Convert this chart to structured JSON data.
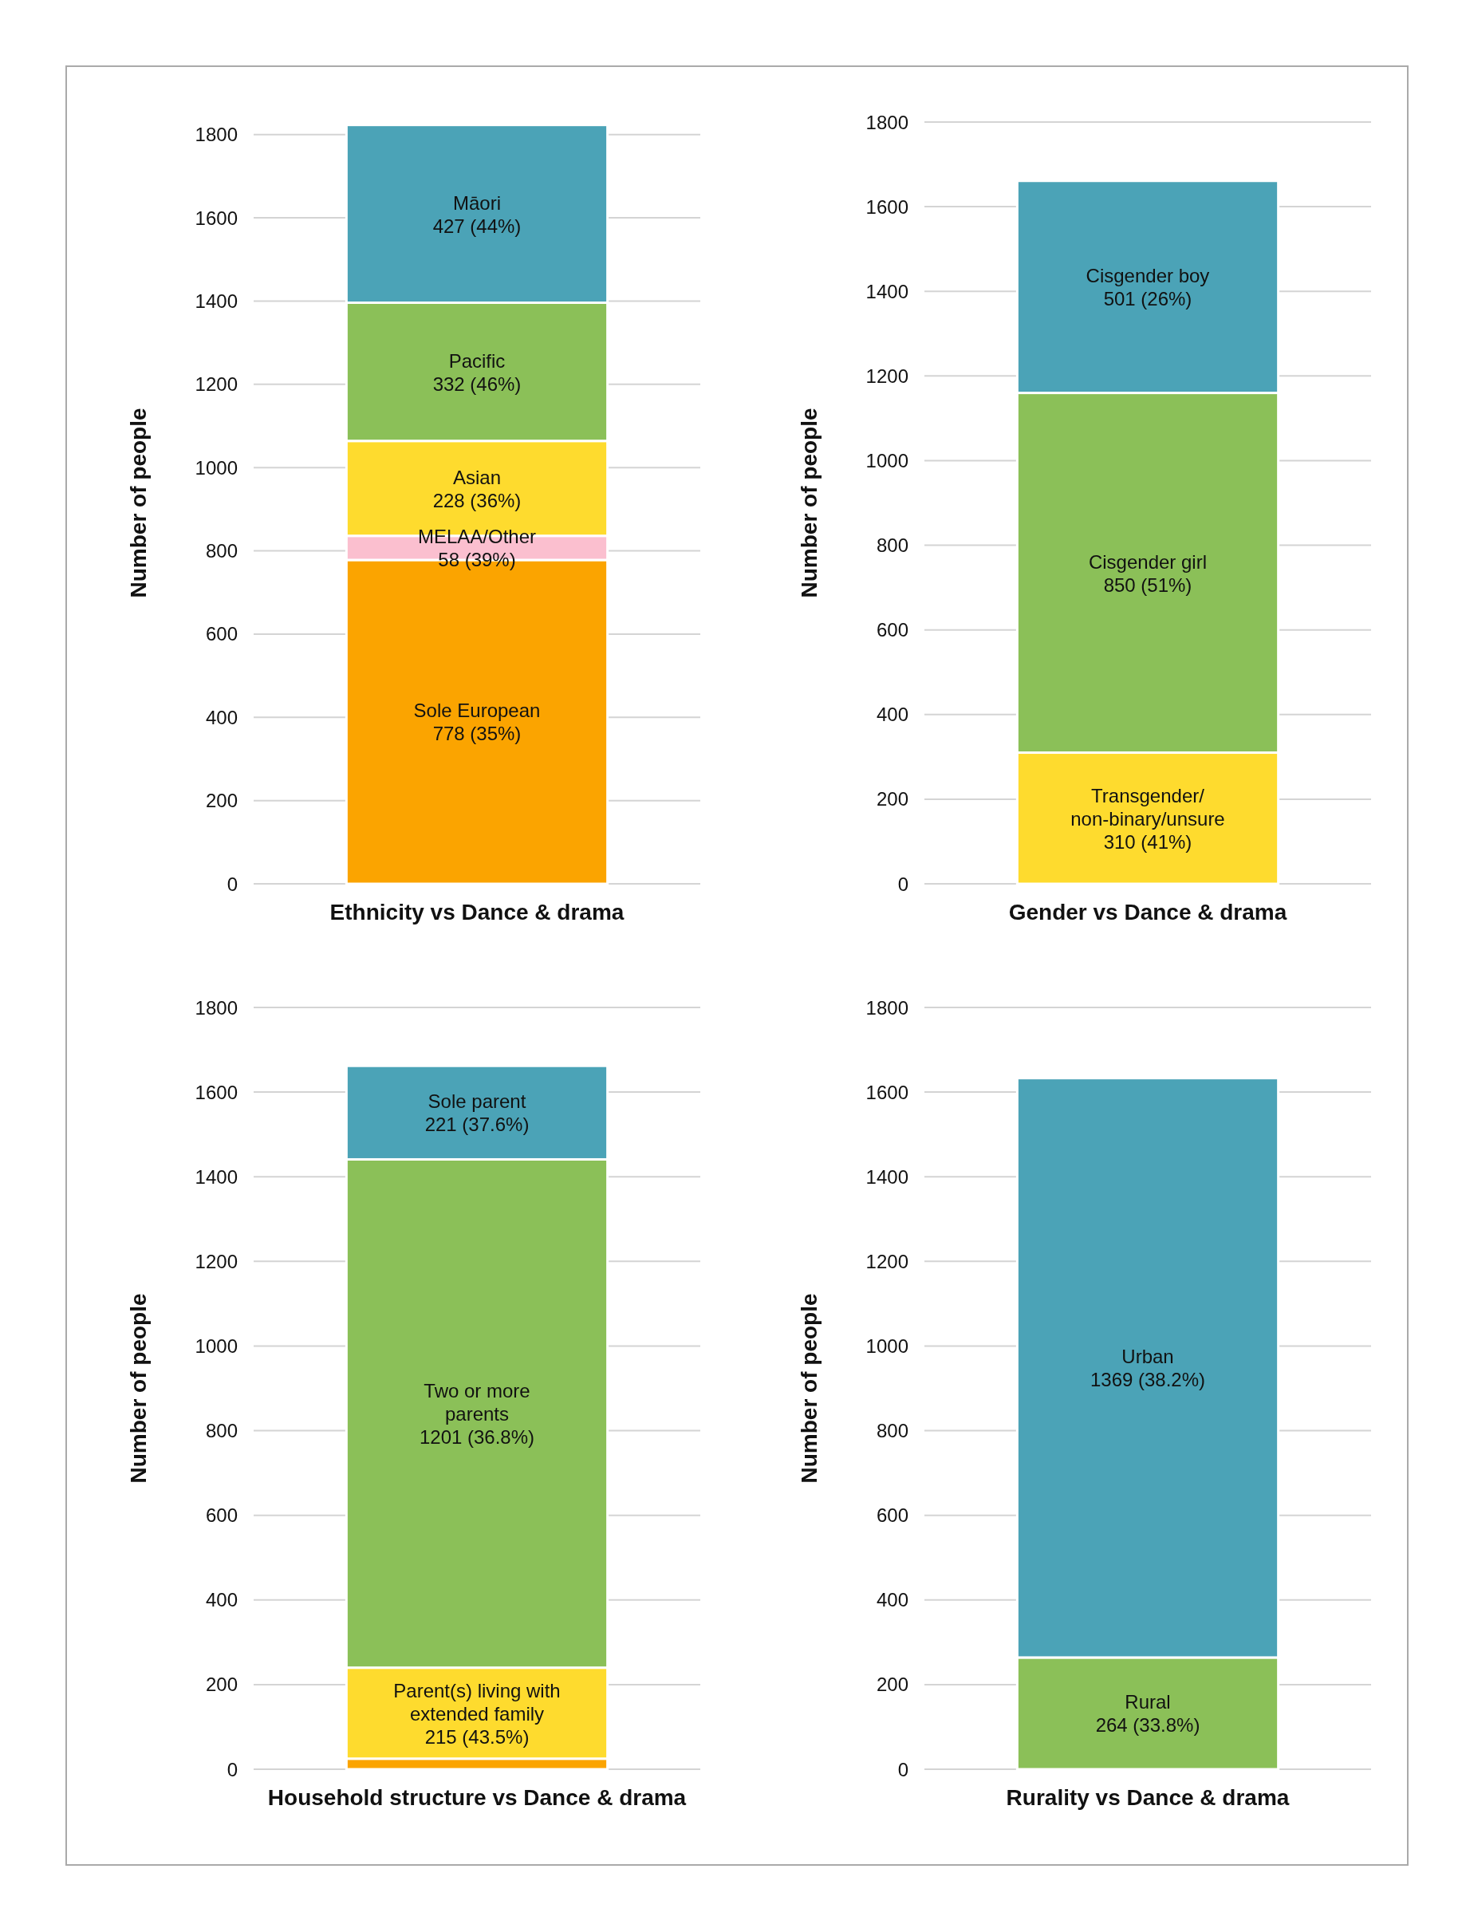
{
  "chart_data": [
    {
      "type": "bar",
      "stacked": true,
      "xlabel": "Ethnicity vs Dance & drama",
      "ylabel": "Number of people",
      "categories": [
        null
      ],
      "ylim": [
        0,
        1830
      ],
      "yticks": [
        0,
        200,
        400,
        600,
        800,
        1000,
        1200,
        1400,
        1600,
        1800
      ],
      "grid": "y",
      "series": [
        {
          "name": "Sole European",
          "color": "#fba400",
          "values": [
            778
          ],
          "value_labels": [
            "778 (35%)"
          ]
        },
        {
          "name": "MELAA/Other",
          "color": "#fbbfcf",
          "values": [
            58
          ],
          "value_labels": [
            "58 (39%)"
          ]
        },
        {
          "name": "Asian",
          "color": "#fedb2e",
          "values": [
            228
          ],
          "value_labels": [
            "228 (36%)"
          ]
        },
        {
          "name": "Pacific",
          "color": "#8bc058",
          "values": [
            332
          ],
          "value_labels": [
            "332 (46%)"
          ]
        },
        {
          "name": "Māori",
          "color": "#4ba3b7",
          "values": [
            427
          ],
          "value_labels": [
            "427 (44%)"
          ]
        }
      ]
    },
    {
      "type": "bar",
      "stacked": true,
      "xlabel": "Gender vs Dance & drama",
      "ylabel": "Number of people",
      "categories": [
        null
      ],
      "ylim": [
        0,
        1800
      ],
      "yticks": [
        0,
        200,
        400,
        600,
        800,
        1000,
        1200,
        1400,
        1600,
        1800
      ],
      "grid": "y",
      "series": [
        {
          "name": "Transgender/\nnon-binary/unsure",
          "color": "#fedb2e",
          "values": [
            310
          ],
          "value_labels": [
            "310 (41%)"
          ]
        },
        {
          "name": "Cisgender girl",
          "color": "#8bc058",
          "values": [
            850
          ],
          "value_labels": [
            "850 (51%)"
          ]
        },
        {
          "name": "Cisgender boy",
          "color": "#4ba3b7",
          "values": [
            501
          ],
          "value_labels": [
            "501 (26%)"
          ]
        }
      ]
    },
    {
      "type": "bar",
      "stacked": true,
      "xlabel": "Household structure vs Dance & drama",
      "ylabel": "Number of people",
      "categories": [
        null
      ],
      "ylim": [
        0,
        1800
      ],
      "yticks": [
        0,
        200,
        400,
        600,
        800,
        1000,
        1200,
        1400,
        1600,
        1800
      ],
      "grid": "y",
      "series": [
        {
          "color": "#fba400",
          "values": [
            25
          ]
        },
        {
          "name": "Parent(s) living with\nextended family",
          "color": "#fedb2e",
          "values": [
            215
          ],
          "value_labels": [
            "215 (43.5%)"
          ]
        },
        {
          "name": "Two or more\nparents",
          "color": "#8bc058",
          "values": [
            1201
          ],
          "value_labels": [
            "1201 (36.8%)"
          ]
        },
        {
          "name": "Sole parent",
          "color": "#4ba3b7",
          "values": [
            221
          ],
          "value_labels": [
            "221 (37.6%)"
          ]
        }
      ]
    },
    {
      "type": "bar",
      "stacked": true,
      "xlabel": "Rurality vs Dance & drama",
      "ylabel": "Number of people",
      "categories": [
        null
      ],
      "ylim": [
        0,
        1800
      ],
      "yticks": [
        0,
        200,
        400,
        600,
        800,
        1000,
        1200,
        1400,
        1600,
        1800
      ],
      "grid": "y",
      "series": [
        {
          "name": "Rural",
          "color": "#8bc058",
          "values": [
            264
          ],
          "value_labels": [
            "264 (33.8%)"
          ]
        },
        {
          "name": "Urban",
          "color": "#4ba3b7",
          "values": [
            1369
          ],
          "value_labels": [
            "1369 (38.2%)"
          ]
        }
      ]
    }
  ]
}
